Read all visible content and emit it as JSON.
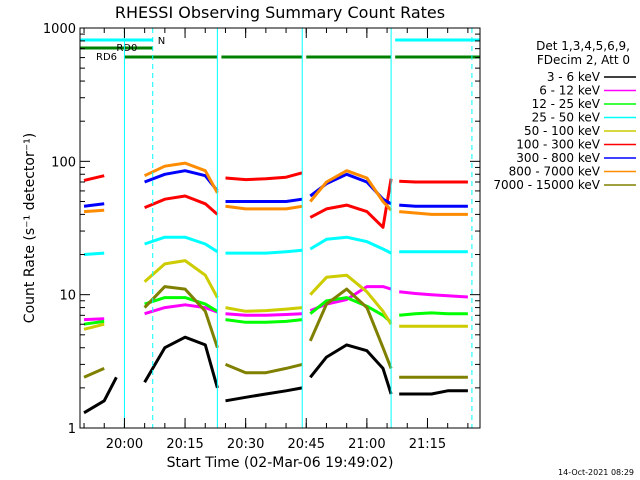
{
  "chart_data": {
    "type": "line",
    "title": "RHESSI Observing Summary Count Rates",
    "xlabel": "Start Time (02-Mar-06 19:49:02)",
    "ylabel": "Count Rate (s⁻¹ detector⁻¹)",
    "y_scale": "log",
    "ylim": [
      1,
      1000
    ],
    "y_ticks": [
      {
        "value": 1,
        "label": "1"
      },
      {
        "value": 10,
        "label": "10"
      },
      {
        "value": 100,
        "label": "100"
      },
      {
        "value": 1000,
        "label": "1000"
      }
    ],
    "xlim": [
      "19:49",
      "21:28"
    ],
    "x_ticks": [
      {
        "value": "20:00",
        "label": "20:00"
      },
      {
        "value": "20:15",
        "label": "20:15"
      },
      {
        "value": "20:30",
        "label": "20:30"
      },
      {
        "value": "20:45",
        "label": "20:45"
      },
      {
        "value": "21:00",
        "label": "21:00"
      },
      {
        "value": "21:15",
        "label": "21:15"
      }
    ],
    "grid": true,
    "legend_header": [
      "Det 1,3,4,5,6,9,",
      "FDecim 2, Att 0"
    ],
    "legend_position": "right",
    "timestamp": "14-Oct-2021 08:29",
    "flag_labels": {
      "n": "N",
      "rd0": "RD0",
      "rd6": "RD6"
    },
    "flag_colors": {
      "n": "#00FFFF",
      "rd0": "#008000",
      "rd6": "#008000"
    },
    "flags": {
      "n": [
        [
          "19:49",
          "20:07"
        ],
        [
          "21:07",
          "21:28"
        ]
      ],
      "rd0": [
        [
          "19:49",
          "20:00"
        ],
        [
          "20:00",
          "20:07"
        ]
      ],
      "rd6": [
        [
          "20:00",
          "20:23"
        ],
        [
          "20:24",
          "20:44"
        ],
        [
          "20:45",
          "21:06"
        ],
        [
          "21:07",
          "21:28"
        ]
      ]
    },
    "gaps": [
      [
        "20:00",
        "20:00"
      ],
      [
        "20:23",
        "20:24"
      ],
      [
        "20:44",
        "20:45"
      ],
      [
        "21:06",
        "21:07"
      ]
    ],
    "vertical_markers": [
      "20:07",
      "21:26"
    ],
    "series": [
      {
        "name": "3 - 6 keV",
        "color": "#000000",
        "x": [
          "19:50",
          "19:55",
          "19:58",
          "20:00",
          "20:05",
          "20:10",
          "20:15",
          "20:20",
          "20:23",
          "20:25",
          "20:30",
          "20:35",
          "20:40",
          "20:44",
          "20:46",
          "20:50",
          "20:55",
          "21:00",
          "21:04",
          "21:06",
          "21:08",
          "21:12",
          "21:16",
          "21:20",
          "21:25"
        ],
        "y": [
          1.3,
          1.6,
          2.4,
          3.2,
          2.2,
          4.0,
          4.8,
          4.2,
          2.0,
          1.6,
          1.7,
          1.8,
          1.9,
          2.0,
          2.4,
          3.4,
          4.2,
          3.8,
          2.8,
          1.8,
          1.8,
          1.8,
          1.8,
          1.9,
          1.9
        ]
      },
      {
        "name": "6 - 12 keV",
        "color": "#FF00FF",
        "x": [
          "19:50",
          "19:55",
          "20:00",
          "20:05",
          "20:10",
          "20:15",
          "20:20",
          "20:23",
          "20:25",
          "20:30",
          "20:35",
          "20:40",
          "20:44",
          "20:46",
          "20:50",
          "20:55",
          "21:00",
          "21:04",
          "21:06",
          "21:08",
          "21:12",
          "21:16",
          "21:20",
          "21:25"
        ],
        "y": [
          6.5,
          6.6,
          6.8,
          7.2,
          8.0,
          8.4,
          8.0,
          7.4,
          7.2,
          7.0,
          7.0,
          7.1,
          7.2,
          7.6,
          8.5,
          9.2,
          11.5,
          11.5,
          11.0,
          10.5,
          10.2,
          10.0,
          9.8,
          9.6
        ]
      },
      {
        "name": "12 - 25 keV",
        "color": "#00FF00",
        "x": [
          "19:50",
          "19:55",
          "20:00",
          "20:05",
          "20:10",
          "20:15",
          "20:20",
          "20:23",
          "20:25",
          "20:30",
          "20:35",
          "20:40",
          "20:44",
          "20:46",
          "20:50",
          "20:55",
          "21:00",
          "21:04",
          "21:06",
          "21:08",
          "21:12",
          "21:16",
          "21:20",
          "21:25"
        ],
        "y": [
          6.0,
          6.3,
          7.0,
          8.5,
          9.5,
          9.5,
          8.5,
          7.5,
          6.5,
          6.2,
          6.2,
          6.3,
          6.5,
          7.2,
          9.0,
          9.5,
          8.2,
          7.0,
          6.2,
          7.0,
          7.2,
          7.3,
          7.2,
          7.2
        ]
      },
      {
        "name": "25 - 50 keV",
        "color": "#00FFFF",
        "x": [
          "19:50",
          "19:55",
          "20:00",
          "20:05",
          "20:10",
          "20:15",
          "20:20",
          "20:23",
          "20:25",
          "20:30",
          "20:35",
          "20:40",
          "20:44",
          "20:46",
          "20:50",
          "20:55",
          "21:00",
          "21:04",
          "21:06",
          "21:08",
          "21:12",
          "21:16",
          "21:20",
          "21:25"
        ],
        "y": [
          20,
          20.5,
          21,
          24,
          27,
          27,
          24,
          21,
          20.5,
          20.5,
          20.5,
          21,
          21.5,
          22,
          26,
          27,
          25,
          22,
          20.5,
          21,
          21,
          21,
          21,
          21
        ]
      },
      {
        "name": "50 - 100 keV",
        "color": "#CCCC00",
        "x": [
          "19:50",
          "19:55",
          "20:00",
          "20:05",
          "20:10",
          "20:15",
          "20:20",
          "20:23",
          "20:25",
          "20:30",
          "20:35",
          "20:40",
          "20:44",
          "20:46",
          "20:50",
          "20:55",
          "21:00",
          "21:04",
          "21:06",
          "21:08",
          "21:12",
          "21:16",
          "21:20",
          "21:25"
        ],
        "y": [
          5.5,
          6.0,
          8.0,
          12.5,
          17.0,
          18.0,
          14.0,
          9.5,
          8.0,
          7.5,
          7.6,
          7.8,
          8.0,
          10.0,
          13.5,
          14.0,
          10.5,
          7.5,
          6.0,
          5.8,
          5.8,
          5.8,
          5.8,
          5.8
        ]
      },
      {
        "name": "100 - 300 keV",
        "color": "#FF0000",
        "x": [
          "19:50",
          "19:55",
          "20:00",
          "20:05",
          "20:10",
          "20:15",
          "20:20",
          "20:23",
          "20:25",
          "20:30",
          "20:35",
          "20:40",
          "20:44",
          "20:46",
          "20:50",
          "20:55",
          "21:00",
          "21:04",
          "21:06",
          "21:08",
          "21:12",
          "21:16",
          "21:20",
          "21:25"
        ],
        "y": [
          72,
          78,
          92,
          45,
          52,
          55,
          48,
          40,
          75,
          73,
          74,
          76,
          82,
          38,
          44,
          47,
          42,
          32,
          74,
          71,
          70,
          70,
          70,
          70
        ]
      },
      {
        "name": "300 - 800 keV",
        "color": "#0000FF",
        "x": [
          "19:50",
          "19:55",
          "20:00",
          "20:05",
          "20:10",
          "20:15",
          "20:20",
          "20:23",
          "20:25",
          "20:30",
          "20:35",
          "20:40",
          "20:44",
          "20:46",
          "20:50",
          "20:55",
          "21:00",
          "21:04",
          "21:06",
          "21:08",
          "21:12",
          "21:16",
          "21:20",
          "21:25"
        ],
        "y": [
          46,
          48,
          52,
          70,
          80,
          85,
          78,
          60,
          50,
          50,
          50,
          50,
          52,
          55,
          68,
          80,
          70,
          52,
          48,
          47,
          46,
          46,
          46,
          46
        ]
      },
      {
        "name": "800 - 7000 keV",
        "color": "#FF8C00",
        "x": [
          "19:50",
          "19:55",
          "20:00",
          "20:05",
          "20:10",
          "20:15",
          "20:20",
          "20:23",
          "20:25",
          "20:30",
          "20:35",
          "20:40",
          "20:44",
          "20:46",
          "20:50",
          "20:55",
          "21:00",
          "21:04",
          "21:06",
          "21:08",
          "21:12",
          "21:16",
          "21:20",
          "21:25"
        ],
        "y": [
          42,
          43,
          48,
          78,
          92,
          97,
          85,
          58,
          46,
          44,
          44,
          44,
          46,
          50,
          70,
          85,
          75,
          50,
          43,
          42,
          41,
          40,
          40,
          40
        ]
      },
      {
        "name": "7000 - 15000 keV",
        "color": "#808000",
        "x": [
          "19:50",
          "19:55",
          "20:00",
          "20:05",
          "20:10",
          "20:15",
          "20:20",
          "20:23",
          "20:25",
          "20:30",
          "20:35",
          "20:40",
          "20:44",
          "20:46",
          "20:50",
          "20:55",
          "21:00",
          "21:04",
          "21:06",
          "21:08",
          "21:12",
          "21:16",
          "21:20",
          "21:25"
        ],
        "y": [
          2.4,
          2.8,
          3.8,
          8.0,
          11.5,
          11.0,
          7.5,
          4.0,
          3.0,
          2.6,
          2.6,
          2.8,
          3.0,
          4.5,
          8.5,
          11.0,
          8.0,
          4.0,
          2.8,
          2.4,
          2.4,
          2.4,
          2.4,
          2.4
        ]
      }
    ]
  }
}
